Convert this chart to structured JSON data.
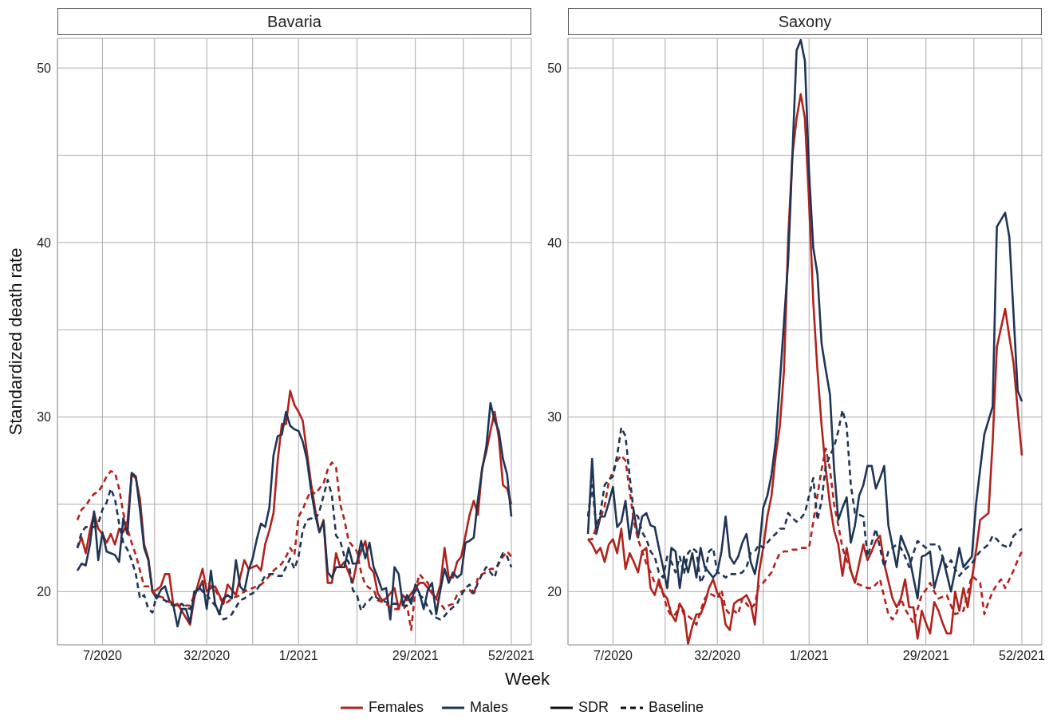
{
  "chart_data": [
    {
      "type": "line",
      "title": "Bavaria",
      "xlabel": "Week",
      "ylabel": "Standardized death rate",
      "legend": "bottom",
      "grid": true,
      "annotations": [
        "SDR",
        "Baseline"
      ],
      "categories": [
        null,
        null,
        null,
        null,
        null,
        null,
        "7/2020",
        null,
        null,
        null,
        null,
        null,
        null,
        null,
        null,
        null,
        null,
        null,
        null,
        null,
        null,
        null,
        null,
        null,
        null,
        null,
        null,
        null,
        null,
        null,
        null,
        "32/2020",
        null,
        null,
        null,
        null,
        null,
        null,
        null,
        null,
        null,
        null,
        null,
        null,
        null,
        null,
        null,
        null,
        null,
        null,
        null,
        null,
        null,
        "1/2021",
        null,
        null,
        null,
        null,
        null,
        null,
        null,
        null,
        null,
        null,
        null,
        null,
        null,
        null,
        null,
        null,
        null,
        null,
        null,
        null,
        null,
        null,
        null,
        null,
        null,
        null,
        null,
        "29/2021",
        null,
        null,
        null,
        null,
        null,
        null,
        null,
        null,
        null,
        null,
        null,
        null,
        null,
        null,
        null,
        null,
        null,
        null,
        null,
        null,
        null,
        null,
        "52/2021"
      ],
      "ylim": [
        16.95,
        51.7
      ],
      "yticks": [
        20,
        {
          "value": 25,
          "label": null
        },
        30,
        {
          "value": 35,
          "label": null
        },
        40,
        {
          "value": 45,
          "label": null
        },
        50
      ],
      "series": [
        {
          "name": "Females",
          "color": "#b2221c",
          "line_style": "solid",
          "values": [
            22.5,
            23.1,
            22.2,
            23.5,
            24.5,
            23.6,
            23.3,
            22.8,
            23.3,
            22.7,
            23.6,
            23.4,
            24,
            26.7,
            26.5,
            25.3,
            22.7,
            21.9,
            20,
            20.1,
            20.3,
            21,
            21,
            19.2,
            19.3,
            18.9,
            18.5,
            18.1,
            19.6,
            20.5,
            21.3,
            20,
            20.2,
            20.3,
            19.8,
            19.3,
            20.4,
            20.1,
            19.8,
            20.8,
            21.8,
            21.3,
            21.4,
            21.5,
            21.2,
            22.7,
            23.5,
            24.5,
            27.5,
            29.6,
            29.6,
            31.5,
            30.7,
            30.3,
            29.8,
            28,
            26.2,
            24.7,
            23.4,
            24.1,
            20.5,
            20.5,
            22.2,
            21.4,
            21.7,
            21.1,
            20.5,
            21.7,
            22.3,
            22.9,
            21.4,
            21.1,
            19.9,
            19.5,
            19.6,
            19.9,
            20.2,
            19,
            19.8,
            19.5,
            19.9,
            20.2,
            20.5,
            20.5,
            20.2,
            19.9,
            19.6,
            20.4,
            22.5,
            20.8,
            20.8,
            21.7,
            22,
            23.2,
            24.4,
            25.2,
            24.4,
            27.1,
            28,
            29.2,
            30.3,
            28.8,
            26.1,
            25.9,
            25
          ]
        },
        {
          "name": "Males",
          "color": "#1f3556",
          "line_style": "solid",
          "values": [
            21.2,
            21.6,
            21.5,
            22.7,
            24.6,
            21.8,
            23.4,
            22.3,
            22.2,
            22.1,
            21.7,
            24.2,
            23.3,
            26.8,
            26.6,
            24.7,
            22.5,
            21.8,
            20,
            19.6,
            20.1,
            20.3,
            19.5,
            19.2,
            18,
            19,
            19,
            18.2,
            20,
            20.1,
            20.6,
            19,
            21.2,
            19.3,
            18.7,
            19.6,
            19.8,
            19.6,
            21.8,
            20.3,
            20,
            21.2,
            21.9,
            23,
            23.9,
            23.7,
            24.8,
            27.8,
            28.9,
            29,
            30.3,
            29.5,
            29.3,
            29.2,
            28.6,
            27.6,
            25.8,
            24.4,
            23.4,
            24,
            21.1,
            20.8,
            21.4,
            21.4,
            21.4,
            22.5,
            21.6,
            21.6,
            22.9,
            21.9,
            22.8,
            21.4,
            20.8,
            20.1,
            20.2,
            18.4,
            21.4,
            21,
            19.2,
            19.8,
            19.3,
            20.4,
            19.9,
            19,
            20.1,
            20.5,
            18.7,
            20.1,
            21.3,
            20.5,
            21.1,
            20.8,
            21,
            22.8,
            22.9,
            23.1,
            25.3,
            27,
            28.3,
            30.8,
            29.8,
            29.2,
            27.6,
            26.7,
            24.3
          ]
        },
        {
          "color": "#b2221c",
          "line_style": "dashed",
          "values": [
            24.1,
            24.7,
            24.9,
            25.3,
            25.6,
            25.7,
            26.1,
            26.6,
            26.9,
            26.8,
            25.9,
            24.5,
            23.6,
            22.8,
            22.1,
            21.2,
            20.3,
            20.3,
            20,
            19.8,
            19.7,
            19.6,
            19.4,
            19.3,
            19.2,
            19.2,
            19.2,
            19.2,
            19.8,
            20.3,
            20.5,
            20.6,
            20.3,
            20.1,
            19.7,
            19.3,
            19.4,
            19.6,
            19.7,
            19.8,
            20,
            20.1,
            20.2,
            20.3,
            20.4,
            20.6,
            20.9,
            21.2,
            21.4,
            21.6,
            22,
            22.5,
            22.1,
            24.3,
            24.7,
            25.3,
            25.8,
            25.6,
            25.9,
            26.2,
            27,
            27.4,
            27.1,
            25,
            24.1,
            22.9,
            22.6,
            22.3,
            21.1,
            20.4,
            20.2,
            20.1,
            19.5,
            19.4,
            19.3,
            19.1,
            19,
            19,
            19,
            19.2,
            17.8,
            20.1,
            21,
            20.7,
            20.5,
            19.9,
            19.6,
            19.3,
            19,
            19.2,
            19.3,
            19.8,
            20,
            20.1,
            20.1,
            19.8,
            20.8,
            21,
            21.1,
            21.3,
            21.3,
            21.6,
            22,
            22.3,
            22
          ]
        },
        {
          "color": "#1f3556",
          "line_style": "dashed",
          "values": [
            22.5,
            23.4,
            23.7,
            23.7,
            23.7,
            23.9,
            24.7,
            25.1,
            25.9,
            25.3,
            23.9,
            22.8,
            22.4,
            21.8,
            21,
            19.6,
            19.8,
            19,
            18.8,
            19.8,
            19.6,
            19.5,
            19.3,
            19.2,
            19.2,
            19.3,
            19.1,
            19,
            19.7,
            20.3,
            20,
            19.8,
            19.5,
            19.2,
            18.8,
            18.4,
            18.5,
            18.7,
            19.1,
            19.5,
            19.6,
            19.8,
            19.9,
            20.1,
            20.5,
            20.9,
            21,
            21,
            20.9,
            20.9,
            21.4,
            21.9,
            21.3,
            22,
            23.5,
            24.1,
            24.2,
            24.1,
            24.6,
            25.5,
            26.4,
            25.5,
            23.2,
            22.9,
            22,
            21.7,
            20.1,
            19.8,
            18.9,
            19.3,
            19.5,
            19.8,
            19.6,
            19.5,
            19.4,
            19.3,
            19.3,
            19.3,
            19.2,
            19.2,
            19.6,
            20.1,
            19.8,
            19.6,
            19.1,
            18.7,
            18.5,
            18.4,
            18.6,
            18.9,
            19.1,
            19.3,
            19.8,
            20.2,
            20.4,
            19.9,
            20.5,
            21,
            21.4,
            21.1,
            20.8,
            21.7,
            22.2,
            22,
            21.4
          ]
        }
      ]
    },
    {
      "type": "line",
      "title": "Saxony",
      "grid": true,
      "categories": [
        null,
        null,
        null,
        null,
        null,
        null,
        "7/2020",
        null,
        null,
        null,
        null,
        null,
        null,
        null,
        null,
        null,
        null,
        null,
        null,
        null,
        null,
        null,
        null,
        null,
        null,
        null,
        null,
        null,
        null,
        null,
        null,
        "32/2020",
        null,
        null,
        null,
        null,
        null,
        null,
        null,
        null,
        null,
        null,
        null,
        null,
        null,
        null,
        null,
        null,
        null,
        null,
        null,
        null,
        null,
        "1/2021",
        null,
        null,
        null,
        null,
        null,
        null,
        null,
        null,
        null,
        null,
        null,
        null,
        null,
        null,
        null,
        null,
        null,
        null,
        null,
        null,
        null,
        null,
        null,
        null,
        null,
        null,
        null,
        "29/2021",
        null,
        null,
        null,
        null,
        null,
        null,
        null,
        null,
        null,
        null,
        null,
        null,
        null,
        null,
        null,
        null,
        null,
        null,
        null,
        null,
        null,
        null,
        "52/2021"
      ],
      "ylim": [
        16.95,
        51.7
      ],
      "yticks": [
        20,
        {
          "value": 25,
          "label": null
        },
        30,
        {
          "value": 35,
          "label": null
        },
        40,
        {
          "value": 45,
          "label": null
        },
        50
      ],
      "series": [
        {
          "color": "#b2221c",
          "line_style": "solid",
          "values": [
            23,
            22.7,
            22.2,
            22.5,
            21.7,
            22.7,
            23,
            22.2,
            23.6,
            21.3,
            22.2,
            21.7,
            21.1,
            22.3,
            22.5,
            20.2,
            19.8,
            20.7,
            19.9,
            19.6,
            18.7,
            18.3,
            19.3,
            18.9,
            17,
            18,
            18.7,
            18.7,
            19.3,
            20.2,
            20.7,
            19.9,
            19.6,
            18.1,
            17.8,
            19.3,
            19.5,
            19.6,
            19.8,
            19.3,
            18.1,
            21.1,
            22.5,
            24.3,
            25.5,
            27.8,
            29.5,
            32.7,
            40.3,
            45,
            47.1,
            48.5,
            47.1,
            42.3,
            36.6,
            32.7,
            29.5,
            27,
            25,
            23.5,
            22.7,
            20.9,
            22.5,
            21.2,
            20.5,
            21.6,
            22.7,
            21.8,
            22.3,
            22.9,
            23.2,
            21.6,
            20.6,
            19.6,
            19.1,
            19.6,
            20.7,
            19.1,
            19.1,
            17.3,
            18.9,
            18.2,
            17.6,
            19.4,
            18.9,
            18.2,
            17.6,
            17.6,
            20,
            18.9,
            20.2,
            19.1,
            20.7,
            22.3,
            24.1,
            24.3,
            24.5,
            28.6,
            34,
            35.1,
            36.2,
            34.6,
            33.1,
            30.4,
            27.8
          ]
        },
        {
          "color": "#1f3556",
          "line_style": "solid",
          "values": [
            23.3,
            27.6,
            23.3,
            24.3,
            24.3,
            25.1,
            26,
            23.7,
            24,
            25.2,
            23,
            24.6,
            23.1,
            24.3,
            24.5,
            23.8,
            23.7,
            22.5,
            21.4,
            20.2,
            22.5,
            22.3,
            20.2,
            22,
            21.1,
            22.2,
            20.8,
            22.5,
            21.4,
            21.1,
            20.8,
            21.1,
            22.3,
            24.3,
            22,
            21.6,
            22,
            22.8,
            23.3,
            21.7,
            21,
            22.3,
            24.8,
            25.5,
            26.7,
            28.6,
            32,
            35.5,
            39,
            45,
            51,
            51.6,
            50.4,
            44,
            39.7,
            38.2,
            34.2,
            32.7,
            31.3,
            27,
            24.1,
            24.8,
            25.4,
            22.8,
            23.8,
            25.5,
            26.1,
            27.2,
            27.2,
            25.9,
            26.5,
            27.2,
            23.8,
            22.6,
            21.4,
            23.2,
            22.6,
            22,
            20.8,
            19.6,
            22,
            22.1,
            22.3,
            20.2,
            21.1,
            22,
            21,
            20,
            21.2,
            22.5,
            21.4,
            21.7,
            22,
            25,
            27,
            29,
            29.8,
            30.6,
            40.9,
            41.3,
            41.7,
            40.3,
            35.9,
            31.5,
            30.9
          ]
        },
        {
          "color": "#b2221c",
          "line_style": "dashed",
          "values": [
            23,
            23,
            23.7,
            24.2,
            24.9,
            26.3,
            26.9,
            27.5,
            27.8,
            27.5,
            25.8,
            24,
            23,
            22.3,
            21.6,
            21.1,
            20.5,
            20.4,
            19.9,
            19,
            18.6,
            18.7,
            19.3,
            18.7,
            18.6,
            18.4,
            18.1,
            18.9,
            19.6,
            19.9,
            19.8,
            19.6,
            20.1,
            19,
            18.7,
            18.9,
            18.7,
            19.6,
            19.3,
            19,
            19.3,
            20.4,
            20.5,
            20.8,
            21.1,
            21.7,
            22.2,
            22.3,
            22.3,
            22.4,
            22.4,
            22.5,
            22.5,
            22.5,
            24,
            25.5,
            27,
            28.2,
            27,
            25,
            23.8,
            22.5,
            21.8,
            21.2,
            20.5,
            20.4,
            20.3,
            20.2,
            20.2,
            20.4,
            20.7,
            19.7,
            18.7,
            18.4,
            18.8,
            19.6,
            19,
            18.6,
            18.2,
            19,
            19.8,
            20.1,
            20.5,
            20,
            19.6,
            19.7,
            19.8,
            19.2,
            18.7,
            18.8,
            18.9,
            19.9,
            20.9,
            20.7,
            20.5,
            18.7,
            19.4,
            20,
            20.4,
            20.7,
            20.2,
            20.7,
            21.2,
            21.8,
            22.3
          ]
        },
        {
          "color": "#1f3556",
          "line_style": "dashed",
          "values": [
            24.3,
            26.1,
            23.7,
            24.5,
            26.1,
            26.4,
            26.6,
            27.8,
            29.4,
            28.9,
            26.6,
            24.5,
            24.3,
            23.4,
            23,
            22.3,
            22,
            21.1,
            20.8,
            22,
            21.7,
            21.1,
            22,
            21,
            22.2,
            22.5,
            22.3,
            20.5,
            21,
            22.3,
            22.5,
            21.1,
            21,
            20.8,
            21,
            21,
            21,
            21.1,
            21.4,
            22.2,
            22.3,
            22.7,
            22.5,
            22.8,
            23.1,
            23.3,
            23.6,
            23.6,
            24.5,
            24.2,
            24,
            24.2,
            24.5,
            25.5,
            26.5,
            24.1,
            25.2,
            27.2,
            27.8,
            28.3,
            29.2,
            30.4,
            29.5,
            26.1,
            24.5,
            24.4,
            24.3,
            22,
            22.8,
            23.6,
            22.5,
            21.4,
            22.3,
            22.5,
            22.7,
            22.5,
            22,
            21.4,
            22.2,
            22.9,
            22.7,
            22.5,
            22.7,
            22.7,
            22.7,
            22,
            21.4,
            21.8,
            21.3,
            20.9,
            21.2,
            21.4,
            21.6,
            22,
            22.3,
            22.5,
            22.7,
            23.2,
            23,
            22.7,
            22.6,
            22.5,
            23.2,
            23.4,
            23.6
          ]
        }
      ]
    }
  ]
}
